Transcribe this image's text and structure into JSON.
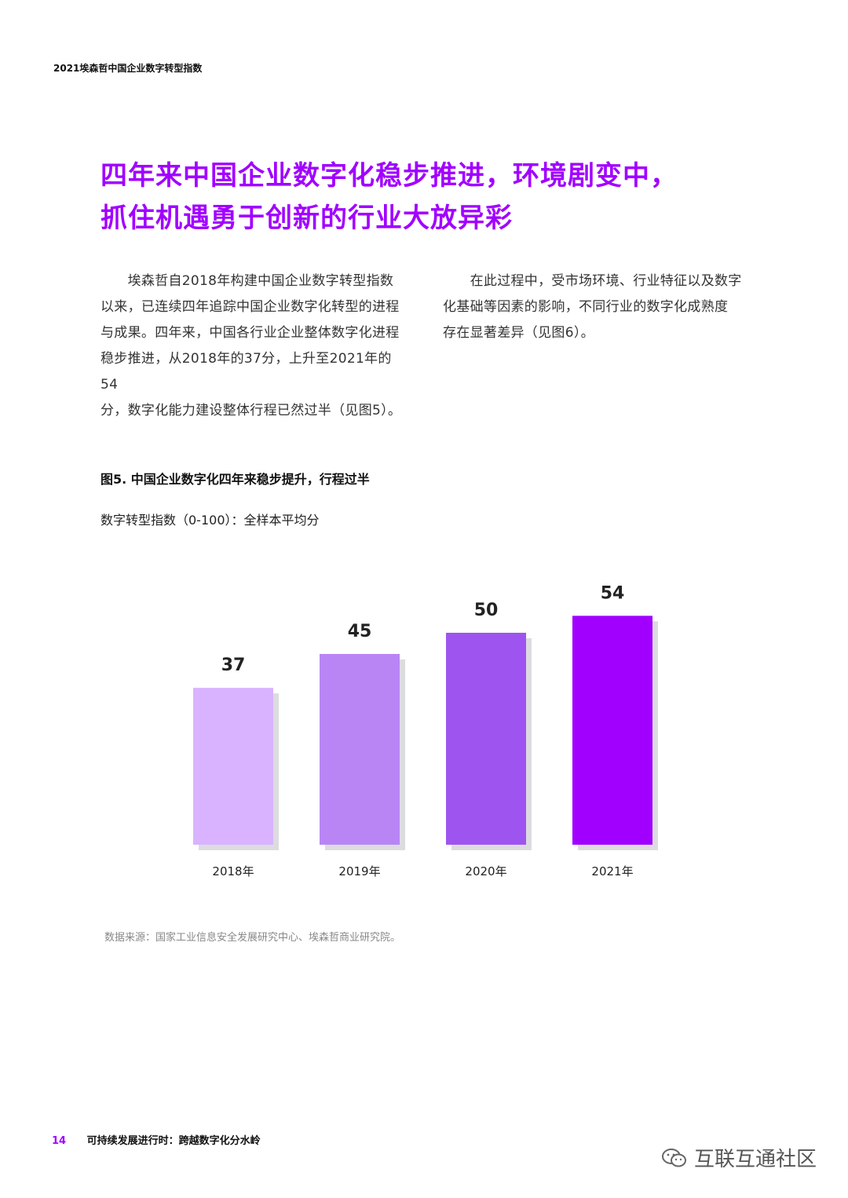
{
  "header": {
    "running_title": "2021埃森哲中国企业数字转型指数"
  },
  "headline": {
    "line1": "四年来中国企业数字化稳步推进，环境剧变中，",
    "line2": "抓住机遇勇于创新的行业大放异彩"
  },
  "body": {
    "left_lines": [
      "　　埃森哲自2018年构建中国企业数字转型指数",
      "以来，已连续四年追踪中国企业数字化转型的进程",
      "与成果。四年来，中国各行业企业整体数字化进程",
      "稳步推进，从2018年的37分，上升至2021年的54",
      "分，数字化能力建设整体行程已然过半（见图5）。"
    ],
    "right_lines": [
      "　　在此过程中，受市场环境、行业特征以及数字",
      "化基础等因素的影响，不同行业的数字化成熟度",
      "存在显著差异（见图6）。"
    ]
  },
  "figure": {
    "title": "图5. 中国企业数字化四年来稳步提升，行程过半",
    "subtitle": "数字转型指数（0-100）：全样本平均分",
    "source": "数据来源：国家工业信息安全发展研究中心、埃森哲商业研究院。"
  },
  "chart_data": {
    "type": "bar",
    "categories": [
      "2018年",
      "2019年",
      "2020年",
      "2021年"
    ],
    "values": [
      37,
      45,
      50,
      54
    ],
    "bar_colors": [
      "#d9b3ff",
      "#b985f5",
      "#9e55ef",
      "#a100ff"
    ],
    "shadow_color": "#dcdce0",
    "ylim": [
      0,
      100
    ],
    "grid": false,
    "legend": "none"
  },
  "footer": {
    "page_number": "14",
    "report_title": "可持续发展进行时：跨越数字化分水岭"
  },
  "watermark": {
    "text": "互联互通社区",
    "icon": "wechat-icon"
  }
}
